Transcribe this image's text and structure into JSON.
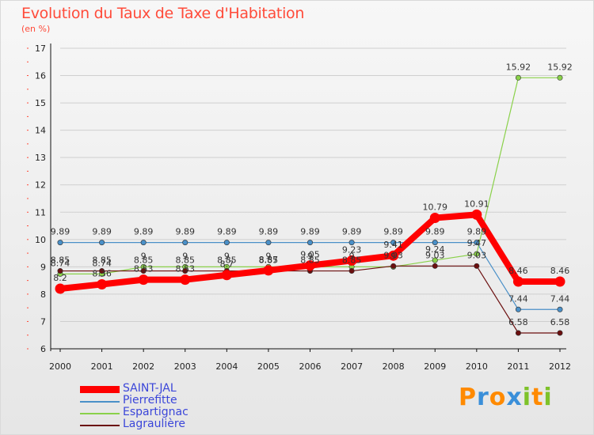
{
  "header": {
    "title": "Evolution du Taux de Taxe d'Habitation",
    "subtitle": "(en %)"
  },
  "brand": {
    "text": "Proxiti",
    "letters": [
      "P",
      "r",
      "o",
      "x",
      "i",
      "t",
      "i"
    ],
    "colors": [
      "#ff8a00",
      "#3a8fd9",
      "#ff8a00",
      "#3a8fd9",
      "#7ec22a",
      "#ff8a00",
      "#7ec22a"
    ]
  },
  "chart_data": {
    "type": "line",
    "title": "Evolution du Taux de Taxe d'Habitation",
    "ylabel": "(en %)",
    "xlabel": "",
    "ylim": [
      6,
      17
    ],
    "yticks": [
      "6",
      "7",
      "8",
      "9",
      "10",
      "11",
      "12",
      "13",
      "14",
      "15",
      "16",
      "17"
    ],
    "categories": [
      "2000",
      "2001",
      "2002",
      "2003",
      "2004",
      "2005",
      "2006",
      "2007",
      "2008",
      "2009",
      "2010",
      "2011",
      "2012"
    ],
    "grid": "horizontal",
    "legend_position": "bottom-left",
    "series": [
      {
        "name": "SAINT-JAL",
        "color": "#ff0000",
        "style": "thick",
        "values": [
          8.2,
          8.36,
          8.53,
          8.53,
          8.7,
          8.87,
          9.05,
          9.23,
          9.41,
          10.79,
          10.91,
          8.46,
          8.46
        ],
        "labels": [
          "8.2",
          "8.36",
          "8.53",
          "8.53",
          "8.7",
          "8.87",
          "9.05",
          "9.23",
          "9.41",
          "10.79",
          "10.91",
          "8.46",
          "8.46"
        ]
      },
      {
        "name": "Pierrefitte",
        "color": "#4a90c8",
        "style": "thin",
        "values": [
          9.89,
          9.89,
          9.89,
          9.89,
          9.89,
          9.89,
          9.89,
          9.89,
          9.89,
          9.89,
          9.89,
          7.44,
          7.44
        ],
        "labels": [
          "9.89",
          "9.89",
          "9.89",
          "9.89",
          "9.89",
          "9.89",
          "9.89",
          "9.89",
          "9.89",
          "9.89",
          "9.89",
          "7.44",
          "7.44"
        ]
      },
      {
        "name": "Espartignac",
        "color": "#8ad14a",
        "style": "thin",
        "values": [
          8.74,
          8.74,
          9,
          9,
          9,
          9,
          9,
          9,
          9,
          9.24,
          9.47,
          15.92,
          15.92
        ],
        "labels": [
          "8.74",
          "8.74",
          "9",
          "9",
          "9",
          "9",
          "9",
          "9",
          "9",
          "9.24",
          "9.47",
          "15.92",
          "15.92"
        ]
      },
      {
        "name": "Lagraulière",
        "color": "#6b0f0f",
        "style": "thin",
        "values": [
          8.85,
          8.85,
          8.85,
          8.85,
          8.85,
          8.85,
          8.85,
          8.85,
          9.03,
          9.03,
          9.03,
          6.58,
          6.58
        ],
        "labels": [
          "8.85",
          "8.85",
          "8.85",
          "8.85",
          "8.85",
          "8.85",
          "8.85",
          "8.85",
          "9.03",
          "9.03",
          "9.03",
          "6.58",
          "6.58"
        ]
      }
    ]
  }
}
